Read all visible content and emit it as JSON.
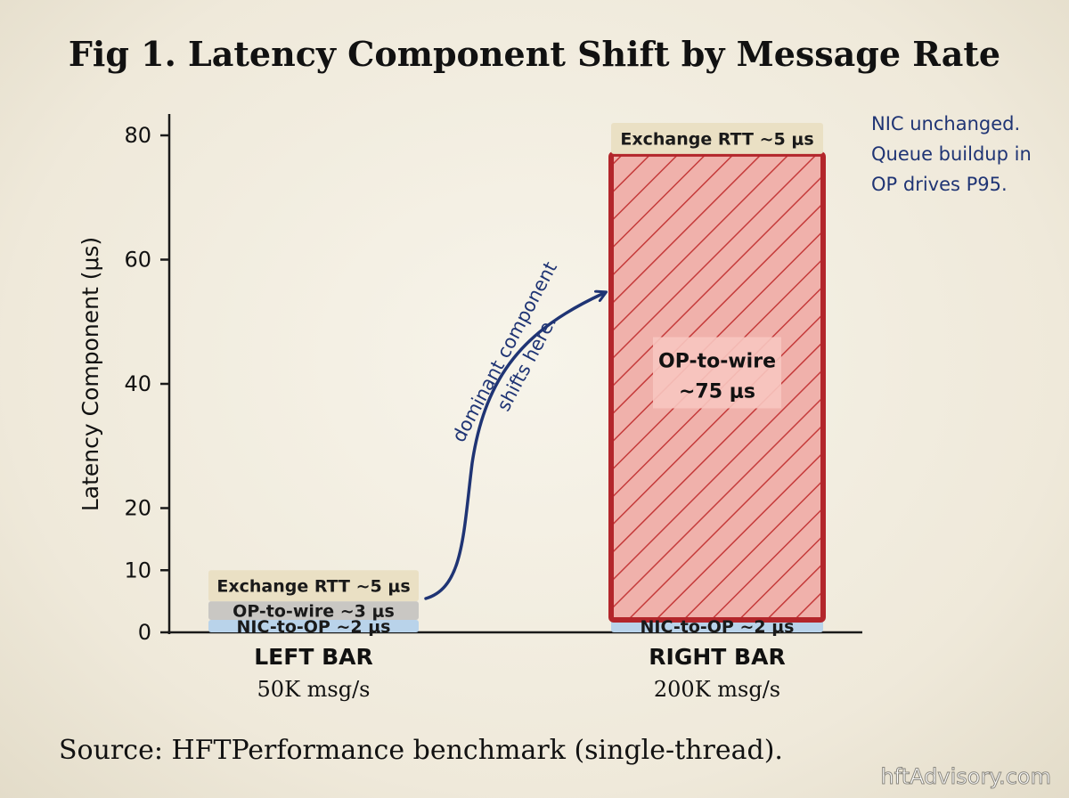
{
  "title": "Fig 1. Latency Component Shift by Message Rate",
  "source": "Source: HFTPerformance benchmark (single-thread).",
  "watermark": "hftAdvisory.com",
  "annotation_note": [
    "NIC unchanged.",
    "Queue buildup in",
    "OP drives P95."
  ],
  "arrow_text": [
    "dominant component",
    "shifts here."
  ],
  "colors": {
    "nic": "#b9d3ea",
    "op_small": "#c9c7c3",
    "exchange": "#eae0c4",
    "op_large": "#f0b1ab",
    "op_large_border": "#b3262b",
    "hatch": "#c53b3b",
    "ink": "#1f3474"
  },
  "chart_data": {
    "type": "bar",
    "stacked": true,
    "title": "Fig 1. Latency Component Shift by Message Rate",
    "ylabel": "Latency Component (μs)",
    "xlabel": "",
    "ylim": [
      0,
      80
    ],
    "yticks": [
      0,
      10,
      20,
      40,
      60,
      80
    ],
    "grid": false,
    "categories": [
      "LEFT BAR",
      "RIGHT BAR"
    ],
    "category_sublabels": [
      "50K msg/s",
      "200K msg/s"
    ],
    "series": [
      {
        "name": "NIC-to-OP",
        "values": [
          2,
          2
        ],
        "labels": [
          "NIC-to-OP ~2 μs",
          "NIC-to-OP ~2 μs"
        ]
      },
      {
        "name": "OP-to-wire",
        "values": [
          3,
          75
        ],
        "labels": [
          "OP-to-wire ~3 μs",
          "OP-to-wire ~75 μs"
        ]
      },
      {
        "name": "Exchange RTT",
        "values": [
          5,
          5
        ],
        "labels": [
          "Exchange RTT ~5 μs",
          "Exchange RTT ~5 μs"
        ]
      }
    ]
  }
}
